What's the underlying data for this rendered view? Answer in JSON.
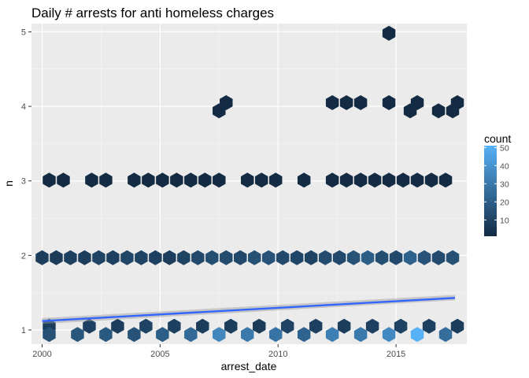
{
  "chart_data": {
    "type": "hexbin",
    "title": "Daily # arrests for anti homeless charges",
    "xlabel": "arrest_date",
    "ylabel": "n",
    "xlim": [
      1999.55,
      2018.0
    ],
    "ylim": [
      0.81,
      5.11
    ],
    "x_ticks": [
      {
        "value": 2000,
        "label": "2000"
      },
      {
        "value": 2005,
        "label": "2005"
      },
      {
        "value": 2010,
        "label": "2010"
      },
      {
        "value": 2015,
        "label": "2015"
      }
    ],
    "y_ticks": [
      {
        "value": 1,
        "label": "1"
      },
      {
        "value": 2,
        "label": "2"
      },
      {
        "value": 3,
        "label": "3"
      },
      {
        "value": 4,
        "label": "4"
      },
      {
        "value": 5,
        "label": "5"
      }
    ],
    "legend": {
      "title": "count",
      "position": "right",
      "min": 1,
      "max": 51,
      "ticks": [
        10,
        20,
        30,
        40,
        50
      ],
      "low_color": "#132B43",
      "high_color": "#56B1F7"
    },
    "hexbins": {
      "row_n1_upper": {
        "y": 1.05,
        "x": [
          2000.3,
          2002.0,
          2003.2,
          2004.4,
          2005.6,
          2006.8,
          2008.0,
          2009.2,
          2010.4,
          2011.6,
          2012.8,
          2014.0,
          2015.2,
          2016.4,
          2017.6
        ],
        "counts": [
          8,
          9,
          8,
          10,
          9,
          8,
          8,
          7,
          10,
          9,
          8,
          9,
          10,
          9,
          8
        ]
      },
      "row_n1_lower": {
        "y": 0.94,
        "x": [
          2000.3,
          2001.5,
          2002.7,
          2003.9,
          2005.1,
          2006.3,
          2007.5,
          2008.7,
          2009.9,
          2011.1,
          2012.3,
          2013.5,
          2014.7,
          2015.9,
          2017.1
        ],
        "counts": [
          15,
          17,
          18,
          16,
          20,
          24,
          35,
          30,
          28,
          22,
          32,
          30,
          36,
          51,
          26
        ]
      },
      "row_n2": {
        "y": 1.97,
        "x": [
          2000.0,
          2000.6,
          2001.2,
          2001.8,
          2002.4,
          2003.0,
          2003.6,
          2004.2,
          2004.8,
          2005.4,
          2006.0,
          2006.6,
          2007.2,
          2007.8,
          2008.4,
          2009.0,
          2009.6,
          2010.2,
          2010.8,
          2011.4,
          2012.0,
          2012.6,
          2013.2,
          2013.8,
          2014.4,
          2015.0,
          2015.6,
          2016.2,
          2016.8,
          2017.4
        ],
        "counts": [
          8,
          7,
          9,
          8,
          10,
          9,
          11,
          10,
          9,
          8,
          10,
          12,
          14,
          13,
          12,
          15,
          16,
          12,
          11,
          10,
          13,
          12,
          16,
          20,
          14,
          12,
          21,
          16,
          13,
          15
        ]
      },
      "row_n3": {
        "y": 3.01,
        "x": [
          2000.3,
          2000.9,
          2002.1,
          2002.7,
          2003.9,
          2004.5,
          2005.1,
          2005.7,
          2006.3,
          2006.9,
          2007.5,
          2008.7,
          2009.3,
          2009.9,
          2011.1,
          2012.3,
          2012.9,
          2013.5,
          2014.1,
          2014.7,
          2015.3,
          2015.9,
          2016.5,
          2017.1
        ],
        "counts": [
          1,
          1,
          1,
          1,
          1,
          1,
          1,
          1,
          1,
          1,
          1,
          1,
          1,
          1,
          1,
          1,
          1,
          1,
          1,
          1,
          1,
          1,
          1,
          1
        ]
      },
      "row_n4_upper": {
        "y": 4.05,
        "x": [
          2007.8,
          2012.3,
          2012.9,
          2013.5,
          2014.7,
          2015.9,
          2017.6
        ],
        "counts": [
          1,
          1,
          1,
          1,
          1,
          1,
          1
        ]
      },
      "row_n4_lower": {
        "y": 3.94,
        "x": [
          2007.5,
          2015.6,
          2016.8,
          2017.4
        ],
        "counts": [
          1,
          1,
          1,
          1
        ]
      },
      "row_n5": {
        "y": 4.98,
        "x": [
          2014.7
        ],
        "counts": [
          1
        ]
      }
    },
    "trend": {
      "method": "linear",
      "x": [
        2000.0,
        2017.5
      ],
      "y": [
        1.12,
        1.43
      ],
      "band_lower": [
        1.08,
        1.4
      ],
      "band_upper": [
        1.16,
        1.47
      ],
      "color": "#3366FF"
    },
    "grid": true,
    "background": "#EBEBEB"
  }
}
